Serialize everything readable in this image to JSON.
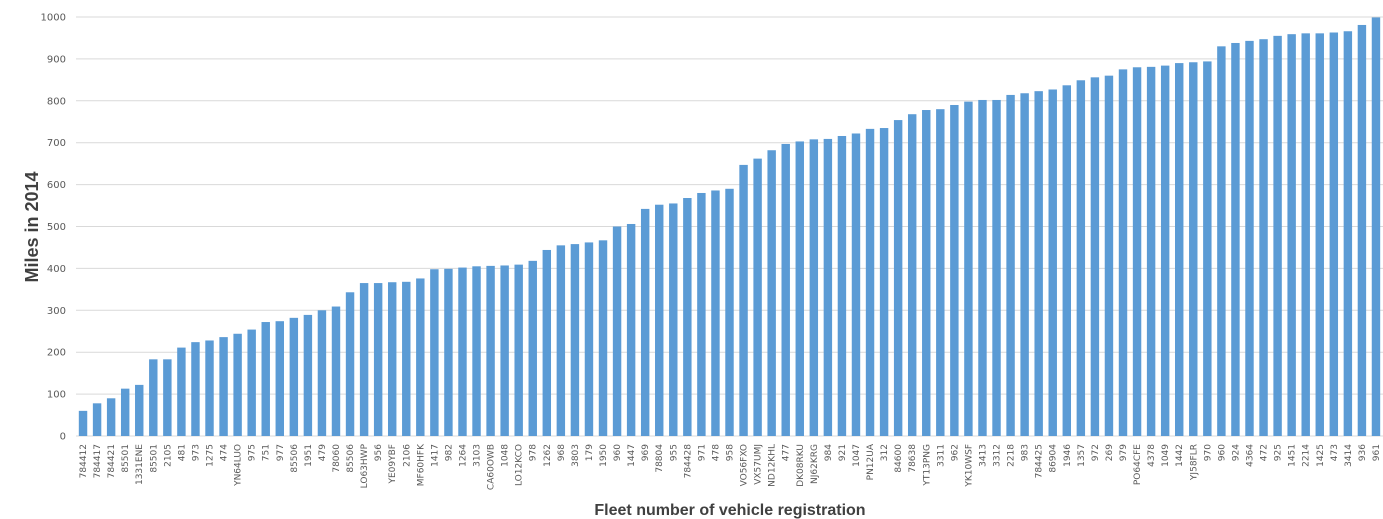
{
  "chart_data": {
    "type": "bar",
    "xlabel": "Fleet number of vehicle registration",
    "ylabel": "Miles in 2014",
    "ylim": [
      0,
      1000
    ],
    "yticks": [
      0,
      100,
      200,
      300,
      400,
      500,
      600,
      700,
      800,
      900,
      1000
    ],
    "grid": true,
    "legend": "none",
    "bar_color": "#5B9BD5",
    "categories": [
      "784412",
      "784417",
      "784421",
      "85501",
      "1331ENE",
      "85501",
      "2105",
      "481",
      "973",
      "1275",
      "474",
      "YN64LUO",
      "975",
      "751",
      "977",
      "85506",
      "1951",
      "479",
      "78060",
      "85506",
      "LO63HWP",
      "956",
      "YE09YBF",
      "2106",
      "MF60HFK",
      "1417",
      "982",
      "1264",
      "3103",
      "CA60OWB",
      "1048",
      "LO12KCO",
      "978",
      "1262",
      "968",
      "3803",
      "179",
      "1950",
      "960",
      "1447",
      "969",
      "78804",
      "955",
      "784428",
      "971",
      "478",
      "958",
      "VO56FXO",
      "VX57UMJ",
      "ND12KHL",
      "477",
      "DK08RKU",
      "NJ62KRG",
      "984",
      "921",
      "1047",
      "PN12UA",
      "312",
      "84600",
      "78638",
      "YT13PNG",
      "3311",
      "962",
      "YK10WSF",
      "3413",
      "3312",
      "2218",
      "983",
      "784425",
      "86904",
      "1946",
      "1357",
      "972",
      "269",
      "979",
      "PO64CFE",
      "4378",
      "1049",
      "1442",
      "YJ58FLR",
      "970",
      "960",
      "924",
      "4364",
      "472",
      "925",
      "1451",
      "2214",
      "1425",
      "473",
      "3414",
      "936",
      "961"
    ],
    "values": [
      60,
      78,
      90,
      113,
      122,
      183,
      183,
      211,
      224,
      228,
      236,
      244,
      254,
      272,
      274,
      282,
      289,
      300,
      309,
      343,
      365,
      365,
      367,
      368,
      376,
      398,
      399,
      402,
      405,
      406,
      407,
      409,
      418,
      444,
      455,
      458,
      462,
      467,
      500,
      506,
      542,
      552,
      555,
      568,
      580,
      586,
      590,
      647,
      662,
      682,
      697,
      703,
      708,
      709,
      716,
      722,
      733,
      735,
      754,
      768,
      778,
      780,
      790,
      798,
      802,
      802,
      814,
      818,
      823,
      827,
      837,
      849,
      856,
      860,
      875,
      880,
      881,
      884,
      890,
      892,
      894,
      930,
      938,
      943,
      947,
      955,
      959,
      961,
      961,
      963,
      966,
      981,
      999
    ]
  }
}
